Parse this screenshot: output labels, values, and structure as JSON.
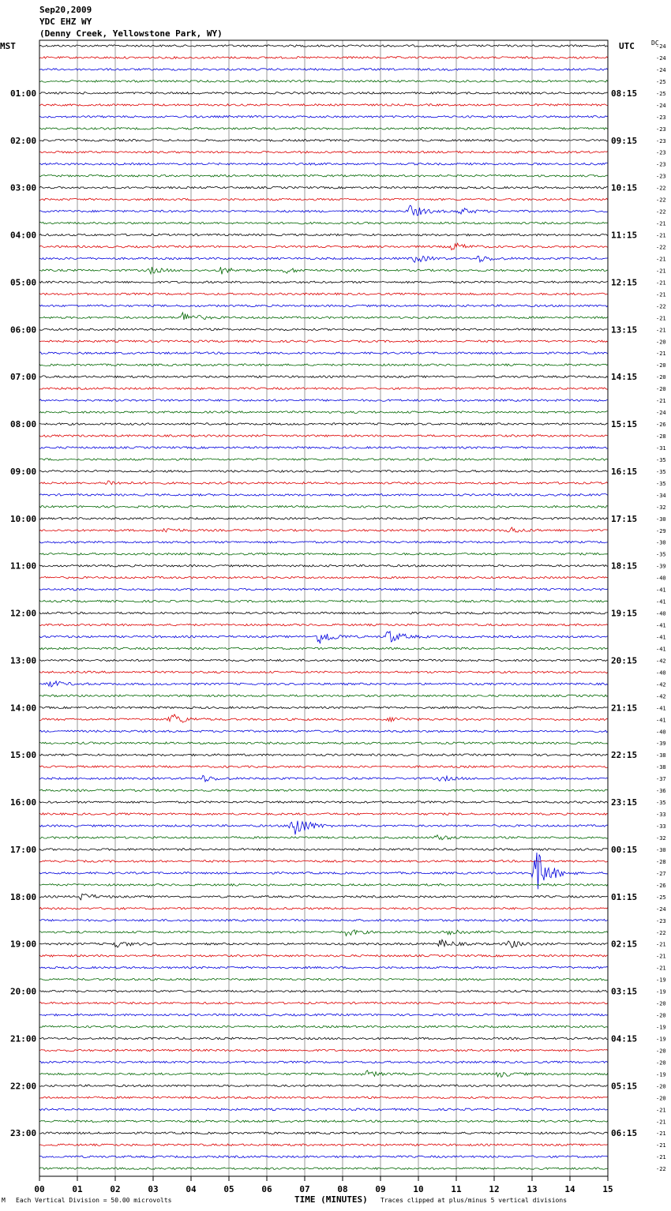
{
  "header": {
    "date": "Sep20,2009",
    "station": "YDC EHZ WY",
    "location": "(Denny Creek, Yellowstone Park, WY)"
  },
  "left_tz": "MST",
  "right_tz": "UTC",
  "dc_header": "DC",
  "footer": {
    "mark": "M",
    "scale": "Each Vertical Division =   50.00 microvolts",
    "clip": "Traces clipped at plus/minus 5 vertical divisions"
  },
  "colors": {
    "trace": [
      "#000000",
      "#dd0000",
      "#0000dd",
      "#006600"
    ],
    "grid": "#9a9a9a"
  },
  "chart_data": {
    "type": "line",
    "title": "YDC EHZ WY",
    "xlabel": "TIME (MINUTES)",
    "ylabel": "",
    "x_ticks": [
      "00",
      "01",
      "02",
      "03",
      "04",
      "05",
      "06",
      "07",
      "08",
      "09",
      "10",
      "11",
      "12",
      "13",
      "14",
      "15"
    ],
    "xlim": [
      0,
      15
    ],
    "traces_per_hour": 4,
    "left_hour_labels": [
      "01:00",
      "02:00",
      "03:00",
      "04:00",
      "05:00",
      "06:00",
      "07:00",
      "08:00",
      "09:00",
      "10:00",
      "11:00",
      "12:00",
      "13:00",
      "14:00",
      "15:00",
      "16:00",
      "17:00",
      "18:00",
      "19:00",
      "20:00",
      "21:00",
      "22:00",
      "23:00"
    ],
    "right_hour_labels": [
      "08:15",
      "09:15",
      "10:15",
      "11:15",
      "12:15",
      "13:15",
      "14:15",
      "15:15",
      "16:15",
      "17:15",
      "18:15",
      "19:15",
      "20:15",
      "21:15",
      "22:15",
      "23:15",
      "00:15",
      "01:15",
      "02:15",
      "03:15",
      "04:15",
      "05:15",
      "06:15"
    ],
    "dc_offsets": [
      "24",
      "24",
      "24",
      "25",
      "25",
      "24",
      "23",
      "23",
      "23",
      "23",
      "23",
      "23",
      "22",
      "22",
      "22",
      "21",
      "21",
      "22",
      "21",
      "21",
      "21",
      "21",
      "22",
      "21",
      "21",
      "20",
      "21",
      "20",
      "20",
      "20",
      "21",
      "24",
      "26",
      "28",
      "31",
      "35",
      "35",
      "35",
      "34",
      "32",
      "30",
      "29",
      "30",
      "35",
      "39",
      "40",
      "41",
      "41",
      "40",
      "41",
      "41",
      "41",
      "42",
      "40",
      "42",
      "42",
      "41",
      "41",
      "40",
      "39",
      "38",
      "38",
      "37",
      "36",
      "35",
      "33",
      "33",
      "32",
      "30",
      "28",
      "27",
      "26",
      "25",
      "24",
      "23",
      "22",
      "21",
      "21",
      "21",
      "19",
      "19",
      "20",
      "20",
      "19",
      "19",
      "20",
      "20",
      "19",
      "20",
      "20",
      "21",
      "21",
      "21",
      "21",
      "21",
      "22"
    ],
    "events": [
      {
        "trace": 14,
        "minute": 9.8,
        "amp": 8
      },
      {
        "trace": 14,
        "minute": 11.1,
        "amp": 4
      },
      {
        "trace": 17,
        "minute": 10.9,
        "amp": 5
      },
      {
        "trace": 18,
        "minute": 9.9,
        "amp": 5
      },
      {
        "trace": 18,
        "minute": 11.6,
        "amp": 4
      },
      {
        "trace": 19,
        "minute": 2.9,
        "amp": 4
      },
      {
        "trace": 19,
        "minute": 4.8,
        "amp": 4
      },
      {
        "trace": 19,
        "minute": 6.5,
        "amp": 3
      },
      {
        "trace": 23,
        "minute": 3.8,
        "amp": 7
      },
      {
        "trace": 37,
        "minute": 1.8,
        "amp": 3
      },
      {
        "trace": 41,
        "minute": 3.3,
        "amp": 3
      },
      {
        "trace": 41,
        "minute": 12.4,
        "amp": 4
      },
      {
        "trace": 50,
        "minute": 7.4,
        "amp": 10
      },
      {
        "trace": 50,
        "minute": 9.2,
        "amp": 9
      },
      {
        "trace": 54,
        "minute": 0.3,
        "amp": 4
      },
      {
        "trace": 57,
        "minute": 3.5,
        "amp": 8
      },
      {
        "trace": 57,
        "minute": 9.3,
        "amp": 3
      },
      {
        "trace": 62,
        "minute": 4.3,
        "amp": 4
      },
      {
        "trace": 62,
        "minute": 10.6,
        "amp": 3
      },
      {
        "trace": 66,
        "minute": 6.7,
        "amp": 18
      },
      {
        "trace": 67,
        "minute": 10.5,
        "amp": 3
      },
      {
        "trace": 70,
        "minute": 13.1,
        "amp": 30
      },
      {
        "trace": 72,
        "minute": 1.1,
        "amp": 4
      },
      {
        "trace": 75,
        "minute": 8.1,
        "amp": 4
      },
      {
        "trace": 75,
        "minute": 10.8,
        "amp": 5
      },
      {
        "trace": 76,
        "minute": 2.0,
        "amp": 4
      },
      {
        "trace": 76,
        "minute": 10.6,
        "amp": 5
      },
      {
        "trace": 76,
        "minute": 12.4,
        "amp": 5
      },
      {
        "trace": 87,
        "minute": 8.6,
        "amp": 4
      },
      {
        "trace": 87,
        "minute": 12.1,
        "amp": 4
      }
    ]
  }
}
